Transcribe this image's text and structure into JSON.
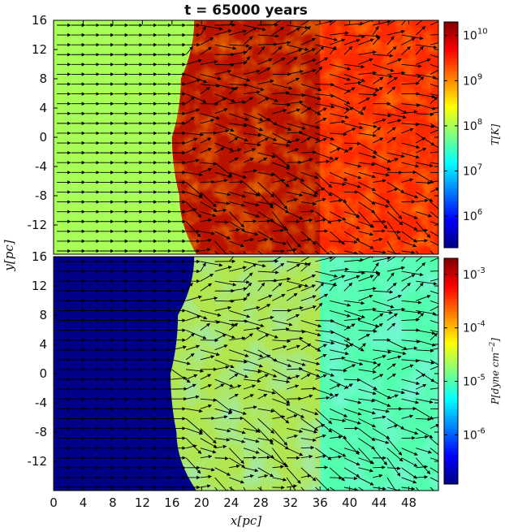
{
  "chart_data": [
    {
      "type": "heatmap",
      "panel": "top",
      "title": "t = 65000 years",
      "quantity": "T[K]",
      "xlim": [
        0,
        52
      ],
      "ylim": [
        -16,
        16
      ],
      "yticks": [
        "16",
        "12",
        "8",
        "4",
        "0",
        "-4",
        "-8",
        "-12"
      ],
      "ytick_values": [
        16,
        12,
        8,
        4,
        0,
        -4,
        -8,
        -12
      ],
      "colorbar": {
        "label": "T[K]",
        "scale": "log",
        "range": [
          200000,
          20000000000
        ],
        "ticks": [
          {
            "base": "10",
            "exp": "10",
            "value": 10000000000
          },
          {
            "base": "10",
            "exp": "9",
            "value": 1000000000
          },
          {
            "base": "10",
            "exp": "8",
            "value": 100000000
          },
          {
            "base": "10",
            "exp": "7",
            "value": 10000000
          },
          {
            "base": "10",
            "exp": "6",
            "value": 1000000
          }
        ]
      },
      "regions": {
        "upstream_value": 100000000,
        "shocked_shell_value": 20000000000,
        "interior_mean_value": 3000000000
      },
      "shock_front_x": [
        {
          "y": 16,
          "x": 19.0
        },
        {
          "y": 8,
          "x": 17.2
        },
        {
          "y": 0,
          "x": 16.0
        },
        {
          "y": -8,
          "x": 17.0
        },
        {
          "y": -16,
          "x": 19.3
        }
      ]
    },
    {
      "type": "heatmap",
      "panel": "bottom",
      "quantity": "P[dyne cm^-2]",
      "xlim": [
        0,
        52
      ],
      "ylim": [
        -16,
        16
      ],
      "xlabel": "x[pc]",
      "ylabel": "y[pc]",
      "xticks": [
        "0",
        "4",
        "8",
        "12",
        "16",
        "20",
        "24",
        "28",
        "32",
        "36",
        "40",
        "44",
        "48"
      ],
      "xtick_values": [
        0,
        4,
        8,
        12,
        16,
        20,
        24,
        28,
        32,
        36,
        40,
        44,
        48
      ],
      "yticks": [
        "16",
        "12",
        "8",
        "4",
        "0",
        "-4",
        "-8",
        "-12"
      ],
      "ytick_values": [
        16,
        12,
        8,
        4,
        0,
        -4,
        -8,
        -12
      ],
      "colorbar": {
        "label_prefix": "P[dyne cm",
        "label_exp": "−2",
        "label_suffix": "]",
        "scale": "log",
        "range": [
          1.2e-07,
          0.002
        ],
        "ticks": [
          {
            "base": "10",
            "exp": "-3",
            "value": 0.001
          },
          {
            "base": "10",
            "exp": "-4",
            "value": 0.0001
          },
          {
            "base": "10",
            "exp": "-5",
            "value": 1e-05
          },
          {
            "base": "10",
            "exp": "-6",
            "value": 1e-06
          }
        ]
      },
      "regions": {
        "upstream_value": 1.3e-07,
        "shocked_shell_value": 8e-05,
        "interior_mean_value": 1e-05
      },
      "shock_front_x": [
        {
          "y": 16,
          "x": 19.0
        },
        {
          "y": 8,
          "x": 16.8
        },
        {
          "y": 0,
          "x": 15.8
        },
        {
          "y": -8,
          "x": 16.6
        },
        {
          "y": -16,
          "x": 19.3
        }
      ]
    }
  ]
}
